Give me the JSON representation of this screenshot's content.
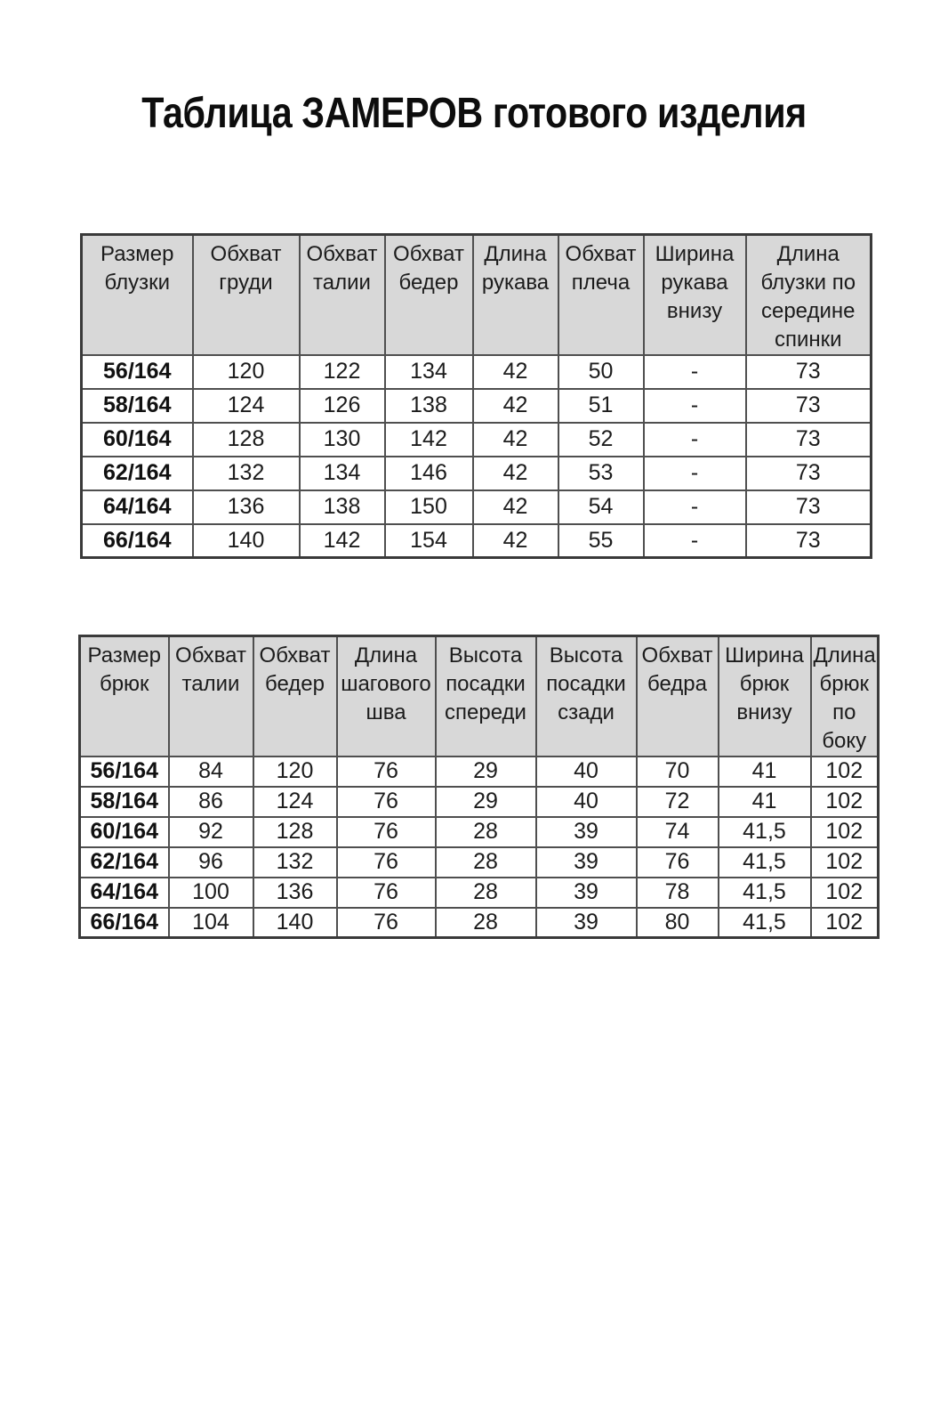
{
  "page": {
    "title": "Таблица ЗАМЕРОВ готового изделия"
  },
  "colors": {
    "header_bg": "#d8d8d8",
    "border": "#4f4f4f",
    "text": "#1c1c1c",
    "background": "#ffffff"
  },
  "blouse_table": {
    "headers": [
      "Размер блузки",
      "Обхват груди",
      "Обхват талии",
      "Обхват бедер",
      "Длина рукава",
      "Обхват плеча",
      "Ширина рукава внизу",
      "Длина блузки по середине спинки"
    ],
    "rows": [
      [
        "56/164",
        "120",
        "122",
        "134",
        "42",
        "50",
        "-",
        "73"
      ],
      [
        "58/164",
        "124",
        "126",
        "138",
        "42",
        "51",
        "-",
        "73"
      ],
      [
        "60/164",
        "128",
        "130",
        "142",
        "42",
        "52",
        "-",
        "73"
      ],
      [
        "62/164",
        "132",
        "134",
        "146",
        "42",
        "53",
        "-",
        "73"
      ],
      [
        "64/164",
        "136",
        "138",
        "150",
        "42",
        "54",
        "-",
        "73"
      ],
      [
        "66/164",
        "140",
        "142",
        "154",
        "42",
        "55",
        "-",
        "73"
      ]
    ]
  },
  "trousers_table": {
    "headers": [
      "Размер брюк",
      "Обхват талии",
      "Обхват бедер",
      "Длина шагового шва",
      "Высота посадки спереди",
      "Высота посадки сзади",
      "Обхват бедра",
      "Ширина брюк внизу",
      "Длина брюк по боку"
    ],
    "rows": [
      [
        "56/164",
        "84",
        "120",
        "76",
        "29",
        "40",
        "70",
        "41",
        "102"
      ],
      [
        "58/164",
        "86",
        "124",
        "76",
        "29",
        "40",
        "72",
        "41",
        "102"
      ],
      [
        "60/164",
        "92",
        "128",
        "76",
        "28",
        "39",
        "74",
        "41,5",
        "102"
      ],
      [
        "62/164",
        "96",
        "132",
        "76",
        "28",
        "39",
        "76",
        "41,5",
        "102"
      ],
      [
        "64/164",
        "100",
        "136",
        "76",
        "28",
        "39",
        "78",
        "41,5",
        "102"
      ],
      [
        "66/164",
        "104",
        "140",
        "76",
        "28",
        "39",
        "80",
        "41,5",
        "102"
      ]
    ]
  }
}
